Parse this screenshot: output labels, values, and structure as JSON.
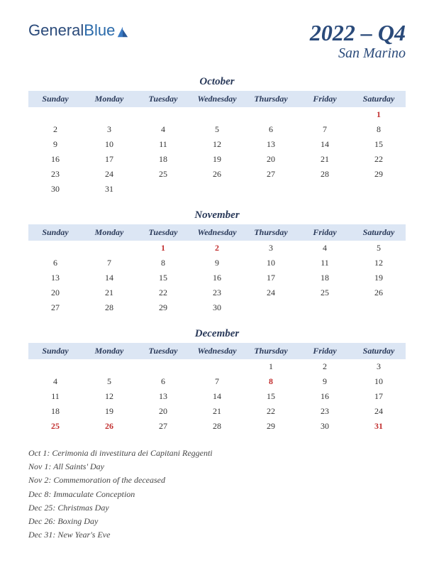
{
  "logo": {
    "part1": "General",
    "part2": "Blue"
  },
  "title": {
    "quarter": "2022 – Q4",
    "country": "San Marino"
  },
  "dayHeaders": [
    "Sunday",
    "Monday",
    "Tuesday",
    "Wednesday",
    "Thursday",
    "Friday",
    "Saturday"
  ],
  "colors": {
    "header_bg": "#dce6f4",
    "text": "#333333",
    "accent": "#2a4a7a",
    "holiday": "#c23030"
  },
  "months": [
    {
      "name": "October",
      "startDay": 6,
      "days": 31,
      "holidays": [
        1
      ]
    },
    {
      "name": "November",
      "startDay": 2,
      "days": 30,
      "holidays": [
        1,
        2
      ]
    },
    {
      "name": "December",
      "startDay": 4,
      "days": 31,
      "holidays": [
        8,
        25,
        26,
        31
      ]
    }
  ],
  "holidayList": [
    "Oct 1: Cerimonia di investitura dei Capitani Reggenti",
    "Nov 1: All Saints' Day",
    "Nov 2: Commemoration of the deceased",
    "Dec 8: Immaculate Conception",
    "Dec 25: Christmas Day",
    "Dec 26: Boxing Day",
    "Dec 31: New Year's Eve"
  ]
}
